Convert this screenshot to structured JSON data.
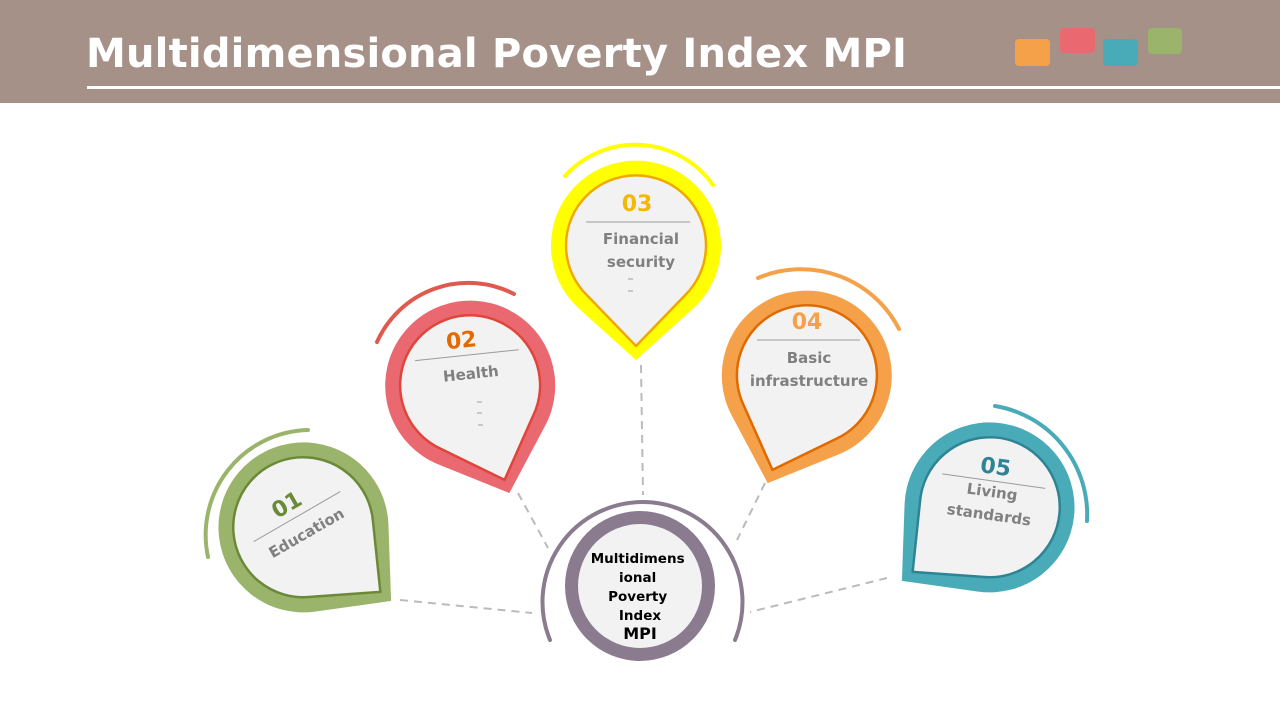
{
  "title": "Multidimensional Poverty Index MPI",
  "colors": {
    "header": "#a69189",
    "center": "#8a7b8f",
    "education": "#9bb46b",
    "health": "#ea6870",
    "financial": "#ffff00",
    "infrastructure": "#f5a14a",
    "living": "#4aabb8",
    "deco": [
      "#f5a14a",
      "#ea6870",
      "#4aabb8",
      "#9bb46b"
    ]
  },
  "center": {
    "lines": [
      "Multidimens",
      "ional",
      "Poverty",
      "Index"
    ],
    "last_line": "MPI"
  },
  "items": [
    {
      "number": "01",
      "lines": [
        "Education"
      ]
    },
    {
      "number": "02",
      "lines": [
        "Health"
      ]
    },
    {
      "number": "03",
      "lines": [
        "Financial",
        "security"
      ]
    },
    {
      "number": "04",
      "lines": [
        "Basic",
        "infrastructure"
      ]
    },
    {
      "number": "05",
      "lines": [
        "Living",
        "standards"
      ]
    }
  ]
}
